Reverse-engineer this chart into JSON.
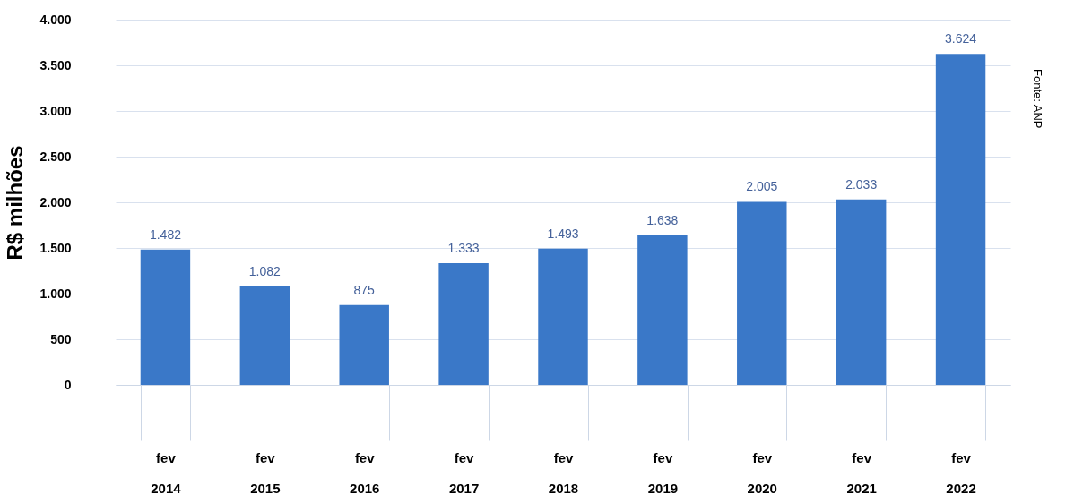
{
  "chart_data": {
    "type": "bar",
    "ylabel": "R$ milhões",
    "categories": [
      "fev\n2014",
      "fev\n2015",
      "fev\n2016",
      "fev\n2017",
      "fev\n2018",
      "fev\n2019",
      "fev\n2020",
      "fev\n2021",
      "fev\n2022"
    ],
    "values": [
      1482,
      1082,
      875,
      1333,
      1493,
      1638,
      2005,
      2033,
      3624
    ],
    "value_labels": [
      "1.482",
      "1.082",
      "875",
      "1.333",
      "1.493",
      "1.638",
      "2.005",
      "2.033",
      "3.624"
    ],
    "color": "#3a78c8",
    "ylim": [
      0,
      4000
    ],
    "yticks": [
      {
        "value": 0,
        "label": "0"
      },
      {
        "value": 500,
        "label": "500"
      },
      {
        "value": 1000,
        "label": "1.000"
      },
      {
        "value": 1500,
        "label": "1.500"
      },
      {
        "value": 2000,
        "label": "2.000"
      },
      {
        "value": 2500,
        "label": "2.500"
      },
      {
        "value": 3000,
        "label": "3.000"
      },
      {
        "value": 3500,
        "label": "3.500"
      },
      {
        "value": 4000,
        "label": "4.000"
      }
    ],
    "grid": "y",
    "annotations": [
      "Fonte: ANP"
    ]
  }
}
